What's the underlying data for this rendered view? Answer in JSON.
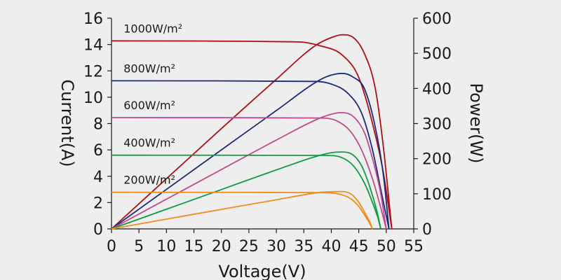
{
  "chart_data": {
    "type": "line",
    "xlabel": "Voltage(V)",
    "ylabel_left": "Current(A)",
    "ylabel_right": "Power(W)",
    "xlim": [
      0,
      55
    ],
    "ylim_left": [
      0,
      16
    ],
    "ylim_right": [
      0,
      600
    ],
    "x_ticks": [
      "0",
      "5",
      "10",
      "15",
      "20",
      "25",
      "30",
      "35",
      "40",
      "45",
      "50",
      "55"
    ],
    "y_left_ticks": [
      "0",
      "2",
      "4",
      "6",
      "8",
      "10",
      "12",
      "14",
      "16"
    ],
    "y_right_ticks": [
      "0",
      "100",
      "200",
      "300",
      "400",
      "500",
      "600"
    ],
    "grid": false,
    "series": [
      {
        "name": "1000W/m²",
        "color": "#b00d14",
        "iv_curve": [
          [
            0,
            14.28
          ],
          [
            34.0,
            14.2
          ],
          [
            38.0,
            13.9
          ],
          [
            42.0,
            13.2
          ],
          [
            45.0,
            11.5
          ],
          [
            47.5,
            8.0
          ],
          [
            49.5,
            4.2
          ],
          [
            51.0,
            0
          ]
        ],
        "pv_curve": [
          [
            0,
            0
          ],
          [
            20.0,
            285.6
          ],
          [
            30.0,
            426.0
          ],
          [
            37.0,
            521.0
          ],
          [
            40.0,
            545.0
          ],
          [
            42.0,
            553.0
          ],
          [
            44.0,
            545.0
          ],
          [
            46.0,
            500.0
          ],
          [
            48.0,
            400.0
          ],
          [
            49.5,
            230.0
          ],
          [
            51.0,
            0
          ]
        ]
      },
      {
        "name": "800W/m²",
        "color": "#1c2a7c",
        "iv_curve": [
          [
            0,
            11.25
          ],
          [
            37.0,
            11.2
          ],
          [
            40.0,
            11.0
          ],
          [
            43.0,
            10.3
          ],
          [
            45.5,
            8.8
          ],
          [
            47.5,
            6.0
          ],
          [
            49.0,
            3.0
          ],
          [
            50.5,
            0
          ]
        ],
        "pv_curve": [
          [
            0,
            0
          ],
          [
            20.0,
            225.0
          ],
          [
            30.0,
            337.0
          ],
          [
            38.0,
            425.0
          ],
          [
            40.5,
            440.0
          ],
          [
            42.0,
            443.0
          ],
          [
            44.0,
            432.0
          ],
          [
            46.0,
            400.0
          ],
          [
            48.0,
            290.0
          ],
          [
            49.5,
            150.0
          ],
          [
            50.5,
            0
          ]
        ]
      },
      {
        "name": "600W/m²",
        "color": "#c04a8a",
        "iv_curve": [
          [
            0,
            8.45
          ],
          [
            38.0,
            8.42
          ],
          [
            41.0,
            8.2
          ],
          [
            43.5,
            7.4
          ],
          [
            45.5,
            6.0
          ],
          [
            47.5,
            3.8
          ],
          [
            49.0,
            1.6
          ],
          [
            50.0,
            0
          ]
        ],
        "pv_curve": [
          [
            0,
            0
          ],
          [
            20.0,
            169.0
          ],
          [
            30.0,
            253.0
          ],
          [
            38.0,
            316.0
          ],
          [
            41.0,
            330.0
          ],
          [
            42.0,
            331.0
          ],
          [
            44.0,
            320.0
          ],
          [
            46.0,
            275.0
          ],
          [
            47.5,
            200.0
          ],
          [
            49.0,
            100.0
          ],
          [
            50.0,
            0
          ]
        ]
      },
      {
        "name": "400W/m²",
        "color": "#129a43",
        "iv_curve": [
          [
            0,
            5.6
          ],
          [
            39.0,
            5.58
          ],
          [
            42.0,
            5.4
          ],
          [
            44.0,
            4.8
          ],
          [
            46.0,
            3.5
          ],
          [
            47.5,
            2.0
          ],
          [
            48.5,
            0.8
          ],
          [
            49.0,
            0
          ]
        ],
        "pv_curve": [
          [
            0,
            0
          ],
          [
            20.0,
            112.0
          ],
          [
            30.0,
            168.0
          ],
          [
            38.0,
            210.0
          ],
          [
            40.5,
            218.0
          ],
          [
            42.0,
            219.0
          ],
          [
            44.0,
            210.0
          ],
          [
            45.5,
            180.0
          ],
          [
            47.0,
            120.0
          ],
          [
            48.3,
            50.0
          ],
          [
            49.0,
            0
          ]
        ]
      },
      {
        "name": "200W/m²",
        "color": "#f08c1a",
        "iv_curve": [
          [
            0,
            2.78
          ],
          [
            38.0,
            2.76
          ],
          [
            41.0,
            2.68
          ],
          [
            43.5,
            2.3
          ],
          [
            45.0,
            1.7
          ],
          [
            46.3,
            0.9
          ],
          [
            47.0,
            0.4
          ],
          [
            47.5,
            0
          ]
        ],
        "pv_curve": [
          [
            0,
            0
          ],
          [
            20.0,
            55.6
          ],
          [
            30.0,
            83.0
          ],
          [
            38.0,
            104.0
          ],
          [
            40.5,
            106.0
          ],
          [
            42.0,
            106.5
          ],
          [
            43.5,
            100.0
          ],
          [
            45.0,
            76.0
          ],
          [
            46.3,
            40.0
          ],
          [
            47.0,
            20.0
          ],
          [
            47.5,
            0
          ]
        ]
      }
    ]
  }
}
